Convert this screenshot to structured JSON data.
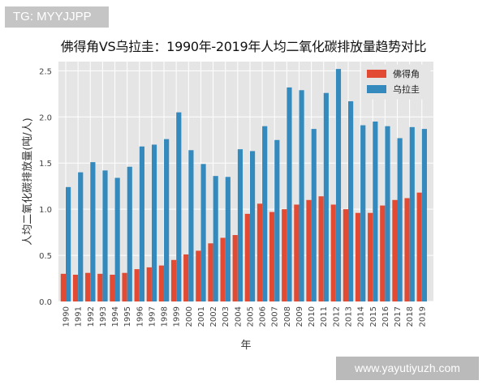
{
  "watermarks": {
    "top": "TG: MYYJJPP",
    "bottom": "www.yayutiyuzh.com"
  },
  "chart_data": {
    "type": "bar",
    "title": "佛得角VS乌拉圭：1990年-2019年人均二氧化碳排放量趋势对比",
    "xlabel": "年",
    "ylabel": "人均二氧化碳排放量(吨/人)",
    "ylim": [
      0,
      2.6
    ],
    "yticks": [
      "0.0",
      "0.5",
      "1.0",
      "1.5",
      "2.0",
      "2.5"
    ],
    "ytick_values": [
      0,
      0.5,
      1.0,
      1.5,
      2.0,
      2.5
    ],
    "grid": true,
    "legend_position": "top-right",
    "categories": [
      "1990",
      "1991",
      "1992",
      "1993",
      "1994",
      "1995",
      "1996",
      "1997",
      "1998",
      "1999",
      "2000",
      "2001",
      "2002",
      "2003",
      "2004",
      "2005",
      "2006",
      "2007",
      "2008",
      "2009",
      "2010",
      "2011",
      "2012",
      "2013",
      "2014",
      "2015",
      "2016",
      "2017",
      "2018",
      "2019"
    ],
    "series": [
      {
        "name": "佛得角",
        "color": "#e24a33",
        "values": [
          0.3,
          0.29,
          0.31,
          0.3,
          0.29,
          0.31,
          0.35,
          0.37,
          0.39,
          0.45,
          0.51,
          0.55,
          0.63,
          0.69,
          0.72,
          0.95,
          1.06,
          0.97,
          1.0,
          1.05,
          1.1,
          1.14,
          1.05,
          1.0,
          0.96,
          0.96,
          1.04,
          1.1,
          1.12,
          1.18
        ]
      },
      {
        "name": "乌拉圭",
        "color": "#348abd",
        "values": [
          1.24,
          1.4,
          1.51,
          1.42,
          1.34,
          1.46,
          1.68,
          1.7,
          1.76,
          2.05,
          1.64,
          1.49,
          1.36,
          1.35,
          1.65,
          1.63,
          1.9,
          1.75,
          2.32,
          2.29,
          1.87,
          2.26,
          2.52,
          2.17,
          1.91,
          1.95,
          1.9,
          1.77,
          1.89,
          1.87
        ]
      }
    ]
  }
}
